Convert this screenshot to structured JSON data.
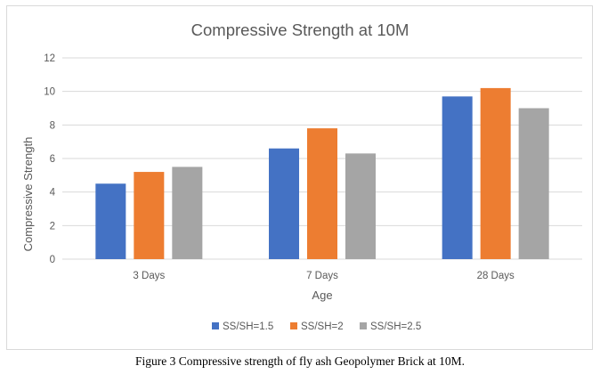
{
  "chart_data": {
    "type": "bar",
    "title": "Compressive Strength at 10M",
    "xlabel": "Age",
    "ylabel": "Compressive Strength",
    "categories": [
      "3 Days",
      "7 Days",
      "28 Days"
    ],
    "series": [
      {
        "name": "SS/SH=1.5",
        "color": "#4472c4",
        "values": [
          4.5,
          6.6,
          9.7
        ]
      },
      {
        "name": "SS/SH=2",
        "color": "#ed7d31",
        "values": [
          5.2,
          7.8,
          10.2
        ]
      },
      {
        "name": "SS/SH=2.5",
        "color": "#a5a5a5",
        "values": [
          5.5,
          6.3,
          9.0
        ]
      }
    ],
    "ylim": [
      0,
      12
    ],
    "yticks": [
      "0",
      "2",
      "4",
      "6",
      "8",
      "10",
      "12"
    ],
    "grid": true,
    "legend_position": "bottom"
  },
  "caption": "Figure 3 Compressive strength of fly ash Geopolymer Brick at 10M."
}
